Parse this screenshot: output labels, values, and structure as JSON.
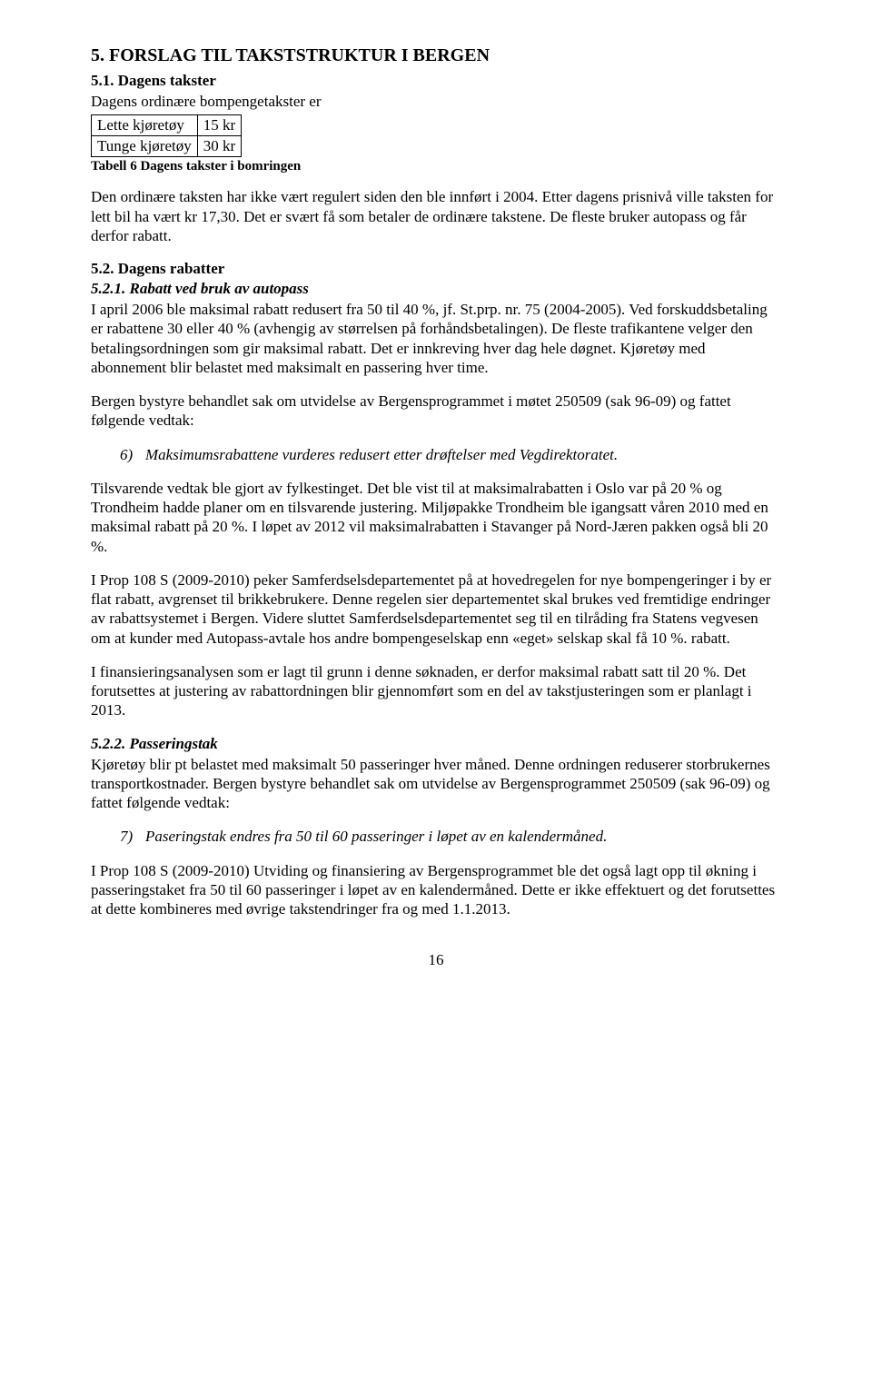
{
  "heading5": "5. FORSLAG TIL TAKSTSTRUKTUR I BERGEN",
  "heading51": "5.1. Dagens takster",
  "p51_intro": "Dagens ordinære bompengetakster er",
  "table6": {
    "rows": [
      [
        "Lette kjøretøy",
        "15 kr"
      ],
      [
        "Tunge kjøretøy",
        "30 kr"
      ]
    ]
  },
  "table6_caption": "Tabell 6 Dagens takster i bomringen",
  "p51_a": "Den ordinære taksten har ikke vært regulert siden den ble innført i 2004. Etter dagens prisnivå ville taksten for lett bil ha vært kr 17,30. Det er svært få som betaler de ordinære takstene. De fleste bruker autopass og får derfor rabatt.",
  "heading52": "5.2. Dagens rabatter",
  "heading521": "5.2.1. Rabatt ved bruk av autopass",
  "p521_a": "I april 2006 ble maksimal rabatt redusert fra 50 til 40 %, jf. St.prp. nr. 75 (2004-2005). Ved forskuddsbetaling er rabattene 30 eller 40 % (avhengig av størrelsen på forhåndsbetalingen). De fleste trafikantene velger den betalingsordningen som gir maksimal rabatt. Det er innkreving hver dag hele døgnet. Kjøretøy med abonnement blir belastet med maksimalt en passering hver time.",
  "p521_b": "Bergen bystyre behandlet sak om utvidelse av Bergensprogrammet i møtet 250509 (sak 96-09) og fattet følgende vedtak:",
  "list6_marker": "6)",
  "list6_text": "Maksimumsrabattene vurderes redusert etter drøftelser med Vegdirektoratet.",
  "p521_c": "Tilsvarende vedtak ble gjort av fylkestinget. Det ble vist til at maksimalrabatten i Oslo var på 20 % og Trondheim hadde planer om en tilsvarende justering. Miljøpakke Trondheim ble igangsatt våren 2010 med en maksimal rabatt på 20 %. I løpet av 2012 vil maksimalrabatten i Stavanger på Nord-Jæren pakken også bli 20 %.",
  "p521_d": "I Prop 108 S (2009-2010) peker Samferdselsdepartementet på at hovedregelen for nye bompengeringer i by er flat rabatt, avgrenset til brikkebrukere. Denne regelen sier departementet skal brukes ved fremtidige endringer av rabattsystemet i Bergen. Videre sluttet Samferdselsdepartementet seg til en tilråding fra Statens vegvesen om at kunder med Autopass-avtale hos andre bompengeselskap enn «eget» selskap skal få 10 %. rabatt.",
  "p521_e": "I finansieringsanalysen som er lagt til grunn i denne søknaden, er derfor maksimal rabatt satt til 20 %.  Det forutsettes at justering av rabattordningen blir gjennomført som en del av takstjusteringen som er planlagt i 2013.",
  "heading522": "5.2.2. Passeringstak",
  "p522_a": "Kjøretøy blir pt belastet med maksimalt 50 passeringer hver måned. Denne ordningen reduserer storbrukernes transportkostnader. Bergen bystyre behandlet sak om utvidelse av Bergensprogrammet 250509 (sak 96-09) og fattet følgende vedtak:",
  "list7_marker": "7)",
  "list7_text": "Paseringstak endres fra 50 til 60 passeringer i løpet av en kalendermåned.",
  "p522_b": "I Prop 108 S (2009-2010) Utviding og finansiering av Bergensprogrammet ble det også lagt opp til økning i passeringstaket fra 50 til 60 passeringer i løpet av en kalendermåned. Dette er ikke effektuert og det forutsettes at dette kombineres med øvrige takstendringer fra og med 1.1.2013.",
  "page_number": "16"
}
